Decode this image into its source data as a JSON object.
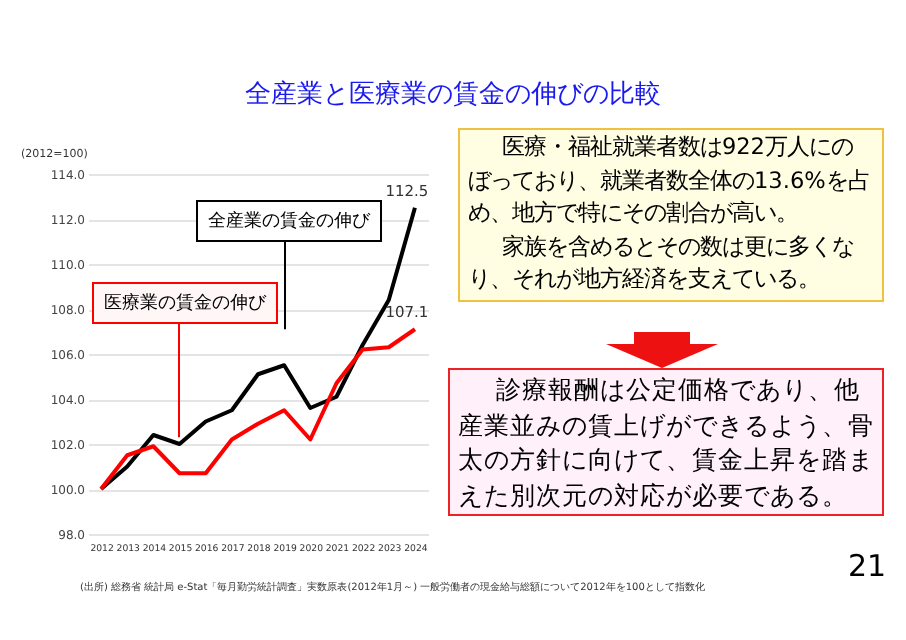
{
  "chart_data": {
    "type": "line",
    "title": "全産業と医療業の賃金の伸びの比較",
    "ylabel": "(2012=100)",
    "categories": [
      "2012",
      "2013",
      "2014",
      "2015",
      "2016",
      "2017",
      "2018",
      "2019",
      "2020",
      "2021",
      "2022",
      "2023",
      "2024"
    ],
    "series": [
      {
        "name": "全産業の賃金の伸び",
        "color": "#000000",
        "values": [
          100,
          101.0,
          102.4,
          102.0,
          103.0,
          103.5,
          105.1,
          105.5,
          103.6,
          104.1,
          106.4,
          108.4,
          112.5
        ],
        "value_labels": [
          null,
          null,
          null,
          null,
          null,
          null,
          null,
          null,
          null,
          null,
          null,
          null,
          "112.5"
        ]
      },
      {
        "name": "医療業の賃金の伸び",
        "color": "#ff0000",
        "values": [
          100,
          101.5,
          101.9,
          100.7,
          100.7,
          102.2,
          102.9,
          103.5,
          102.2,
          104.7,
          106.2,
          106.3,
          107.1
        ],
        "value_labels": [
          null,
          null,
          null,
          null,
          null,
          null,
          null,
          null,
          null,
          null,
          null,
          null,
          "107.1"
        ]
      }
    ],
    "ylim": [
      98,
      114
    ],
    "yticks": [
      {
        "value": 98,
        "label": "98.0"
      },
      {
        "value": 100,
        "label": "100.0"
      },
      {
        "value": 102,
        "label": "102.0"
      },
      {
        "value": 104,
        "label": "104.0"
      },
      {
        "value": 106,
        "label": "106.0"
      },
      {
        "value": 108,
        "label": "108.0"
      },
      {
        "value": 110,
        "label": "110.0"
      },
      {
        "value": 112,
        "label": "112.0"
      },
      {
        "value": 114,
        "label": "114.0"
      }
    ],
    "grid": "y",
    "legend": false,
    "marker": "none",
    "line_style": "solid",
    "annotations": [
      "医療・福祉就業者数は922万人にのぼっており、就業者数全体の13.6%を占め、地方で特にその割合が高い。",
      "家族を含めるとその数は更に多くなり、それが地方経済を支えている。",
      "診療報酬は公定価格であり、他産業並みの賃上げができるよう、骨太の方針に向けて、賃金上昇を踏まえた別次元の対応が必要である。",
      "(出所) 総務省 統計局 e-Stat「毎月勤労統計調査」実数原表(2012年1月～) 一般労働者の現金給与総額について2012年を100として指数化",
      "21"
    ]
  }
}
